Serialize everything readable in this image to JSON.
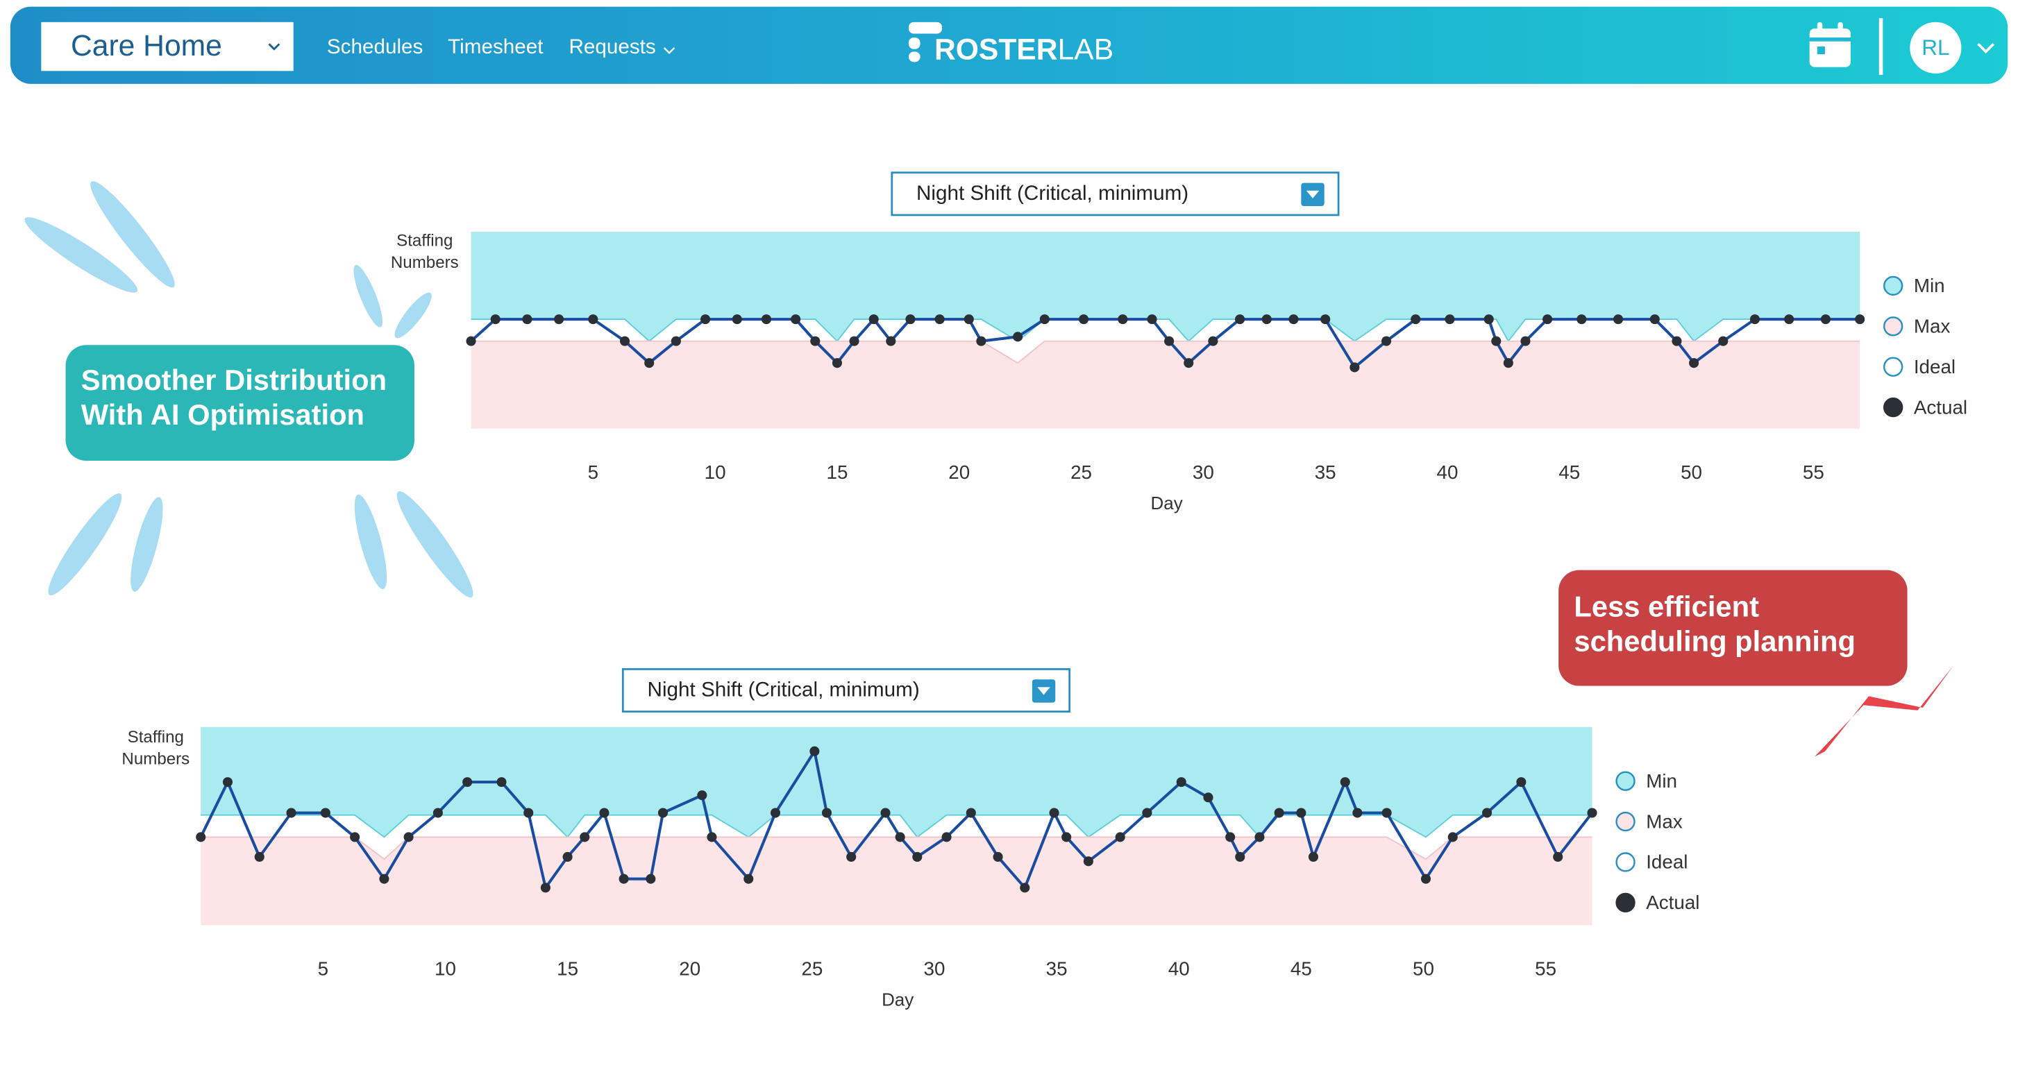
{
  "header": {
    "location": "Care Home",
    "nav": [
      "Schedules",
      "Timesheet",
      "Requests"
    ],
    "logo": [
      "ROSTER",
      "LAB"
    ],
    "avatar": "RL"
  },
  "callouts": [
    "Smoother Distribution With AI Optimisation",
    "Less efficient scheduling planning"
  ],
  "chart_data": [
    {
      "type": "line",
      "filter": "Night Shift (Critical, minimum)",
      "y_label": "Staffing Numbers",
      "x_label": "Day",
      "xlim": [
        0,
        57
      ],
      "ylim": [
        0,
        9
      ],
      "xticks": [
        5,
        10,
        15,
        20,
        25,
        30,
        35,
        40,
        45,
        50,
        55
      ],
      "x": [
        0,
        1.0,
        2.3,
        3.6,
        5.0,
        6.3,
        7.3,
        8.4,
        9.6,
        10.9,
        12.1,
        13.3,
        14.1,
        15.0,
        15.7,
        16.5,
        17.2,
        18.0,
        19.2,
        20.4,
        20.9,
        22.4,
        23.5,
        25.1,
        26.7,
        27.9,
        28.6,
        29.4,
        30.4,
        31.5,
        32.6,
        33.7,
        35.0,
        36.2,
        37.5,
        38.7,
        40.1,
        41.7,
        42.0,
        42.5,
        43.2,
        44.1,
        45.5,
        47.0,
        48.5,
        49.4,
        50.1,
        51.3,
        52.6,
        54.0,
        55.5,
        56.9
      ],
      "series": [
        {
          "name": "Min",
          "color": "#a9ebf0",
          "area": "to-top",
          "values": [
            5,
            5,
            5,
            5,
            5,
            5,
            4,
            5,
            5,
            5,
            5,
            5,
            5,
            4,
            5,
            5,
            5,
            5,
            5,
            5,
            5,
            4,
            5,
            5,
            5,
            5,
            5,
            4,
            5,
            5,
            5,
            5,
            5,
            4,
            5,
            5,
            5,
            5,
            5,
            4,
            5,
            5,
            5,
            5,
            5,
            5,
            4,
            5,
            5,
            5,
            5,
            5
          ]
        },
        {
          "name": "Max",
          "color": "#fde4e6",
          "area": "to-bottom",
          "values": [
            4,
            4,
            4,
            4,
            4,
            4,
            4,
            4,
            4,
            4,
            4,
            4,
            4,
            4,
            4,
            4,
            4,
            4,
            4,
            4,
            4,
            3,
            4,
            4,
            4,
            4,
            4,
            4,
            4,
            4,
            4,
            4,
            4,
            4,
            4,
            4,
            4,
            4,
            4,
            4,
            4,
            4,
            4,
            4,
            4,
            4,
            4,
            4,
            4,
            4,
            4,
            4
          ]
        },
        {
          "name": "Ideal",
          "color": "#ffffff",
          "values": [
            null,
            null,
            null,
            null,
            null,
            null,
            null,
            null,
            null,
            null,
            null,
            null,
            null,
            null,
            null,
            null,
            null,
            null,
            null,
            null,
            null,
            null,
            null,
            null,
            null,
            null,
            null,
            null,
            null,
            null,
            null,
            null,
            null,
            null,
            null,
            null,
            null,
            null,
            null,
            null,
            null,
            null,
            null,
            null,
            null,
            null,
            null,
            null,
            null,
            null,
            null,
            null
          ]
        },
        {
          "name": "Actual",
          "color": "#1a4da0",
          "marker_color": "#2b2f36",
          "values": [
            4,
            5,
            5,
            5,
            5,
            4,
            3,
            4,
            5,
            5,
            5,
            5,
            4,
            3,
            4,
            5,
            4,
            5,
            5,
            5,
            4,
            4.2,
            5,
            5,
            5,
            5,
            4,
            3,
            4,
            5,
            5,
            5,
            5,
            2.8,
            4,
            5,
            5,
            5,
            4,
            3,
            4,
            5,
            5,
            5,
            5,
            4,
            3,
            4,
            5,
            5,
            5,
            5
          ]
        }
      ]
    },
    {
      "type": "line",
      "filter": "Night Shift (Critical, minimum)",
      "y_label": "Staffing Numbers",
      "x_label": "Day",
      "xlim": [
        0,
        57
      ],
      "ylim": [
        0,
        9
      ],
      "xticks": [
        5,
        10,
        15,
        20,
        25,
        30,
        35,
        40,
        45,
        50,
        55
      ],
      "x": [
        0,
        1.1,
        2.4,
        3.7,
        5.1,
        6.3,
        7.5,
        8.5,
        9.7,
        10.9,
        12.3,
        13.4,
        14.1,
        15.0,
        15.7,
        16.5,
        17.3,
        18.4,
        18.9,
        20.5,
        20.9,
        22.4,
        23.5,
        25.1,
        25.6,
        26.6,
        28.0,
        28.6,
        29.3,
        30.5,
        31.5,
        32.6,
        33.7,
        34.9,
        35.4,
        36.3,
        37.6,
        38.7,
        40.1,
        41.2,
        42.1,
        42.5,
        43.3,
        44.1,
        45.0,
        45.5,
        46.8,
        47.3,
        48.5,
        50.1,
        51.2,
        52.6,
        54.0,
        55.5,
        56.9
      ],
      "series": [
        {
          "name": "Min",
          "color": "#a9ebf0",
          "area": "to-top",
          "values": [
            5,
            5,
            5,
            5,
            5,
            5,
            4,
            5,
            5,
            5,
            5,
            5,
            5,
            4,
            5,
            5,
            5,
            5,
            5,
            5,
            5,
            4,
            5,
            5,
            5,
            5,
            5,
            5,
            4,
            5,
            5,
            5,
            5,
            5,
            5,
            4,
            5,
            5,
            5,
            5,
            5,
            5,
            4,
            5,
            5,
            5,
            5,
            5,
            5,
            4,
            5,
            5,
            5,
            5,
            5
          ]
        },
        {
          "name": "Max",
          "color": "#fde4e6",
          "area": "to-bottom",
          "values": [
            4,
            4,
            4,
            4,
            4,
            4,
            3,
            4,
            4,
            4,
            4,
            4,
            4,
            4,
            4,
            4,
            4,
            4,
            4,
            4,
            4,
            4,
            4,
            4,
            4,
            4,
            4,
            4,
            4,
            4,
            4,
            4,
            4,
            4,
            4,
            4,
            4,
            4,
            4,
            4,
            4,
            4,
            4,
            4,
            4,
            4,
            4,
            4,
            4,
            3,
            4,
            4,
            4,
            4,
            4
          ]
        },
        {
          "name": "Ideal",
          "color": "#ffffff",
          "values": [
            null,
            null,
            null,
            null,
            null,
            null,
            null,
            null,
            null,
            null,
            null,
            null,
            null,
            null,
            null,
            null,
            null,
            null,
            null,
            null,
            null,
            null,
            null,
            null,
            null,
            null,
            null,
            null,
            null,
            null,
            null,
            null,
            null,
            null,
            null,
            null,
            null,
            null,
            null,
            null,
            null,
            null,
            null,
            null,
            null,
            null,
            null,
            null,
            null,
            null,
            null,
            null,
            null,
            null,
            null
          ]
        },
        {
          "name": "Actual",
          "color": "#1a4da0",
          "marker_color": "#2b2f36",
          "values": [
            4.0,
            6.5,
            3.1,
            5.1,
            5.1,
            4.0,
            2.1,
            4.0,
            5.1,
            6.5,
            6.5,
            5.1,
            1.7,
            3.1,
            4.0,
            5.1,
            2.1,
            2.1,
            5.1,
            5.9,
            4.0,
            2.1,
            5.1,
            7.9,
            5.1,
            3.1,
            5.1,
            4.0,
            3.1,
            4.0,
            5.1,
            3.1,
            1.7,
            5.1,
            4.0,
            2.9,
            4.0,
            5.1,
            6.5,
            5.8,
            4.0,
            3.1,
            4.0,
            5.1,
            5.1,
            3.1,
            6.5,
            5.1,
            5.1,
            2.1,
            4.0,
            5.1,
            6.5,
            3.1,
            5.1
          ]
        }
      ]
    }
  ]
}
